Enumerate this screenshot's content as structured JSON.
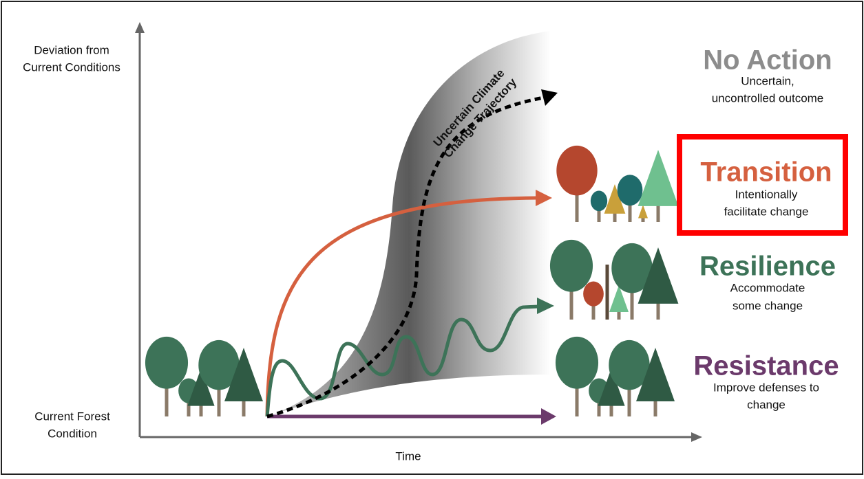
{
  "y_axis_label": [
    "Deviation from",
    "Current Conditions"
  ],
  "origin_label": [
    "Current Forest",
    "Condition"
  ],
  "x_axis_label": "Time",
  "trajectory_label": [
    "Uncertain Climate",
    "Change Trajectory"
  ],
  "options": [
    {
      "title": "No Action",
      "description": [
        "Uncertain,",
        "uncontrolled outcome"
      ]
    },
    {
      "title": "Transition",
      "description": [
        "Intentionally",
        "facilitate change"
      ]
    },
    {
      "title": "Resilience",
      "description": [
        "Accommodate",
        "some change"
      ]
    },
    {
      "title": "Resistance",
      "description": [
        "Improve defenses to",
        "change"
      ]
    }
  ]
}
